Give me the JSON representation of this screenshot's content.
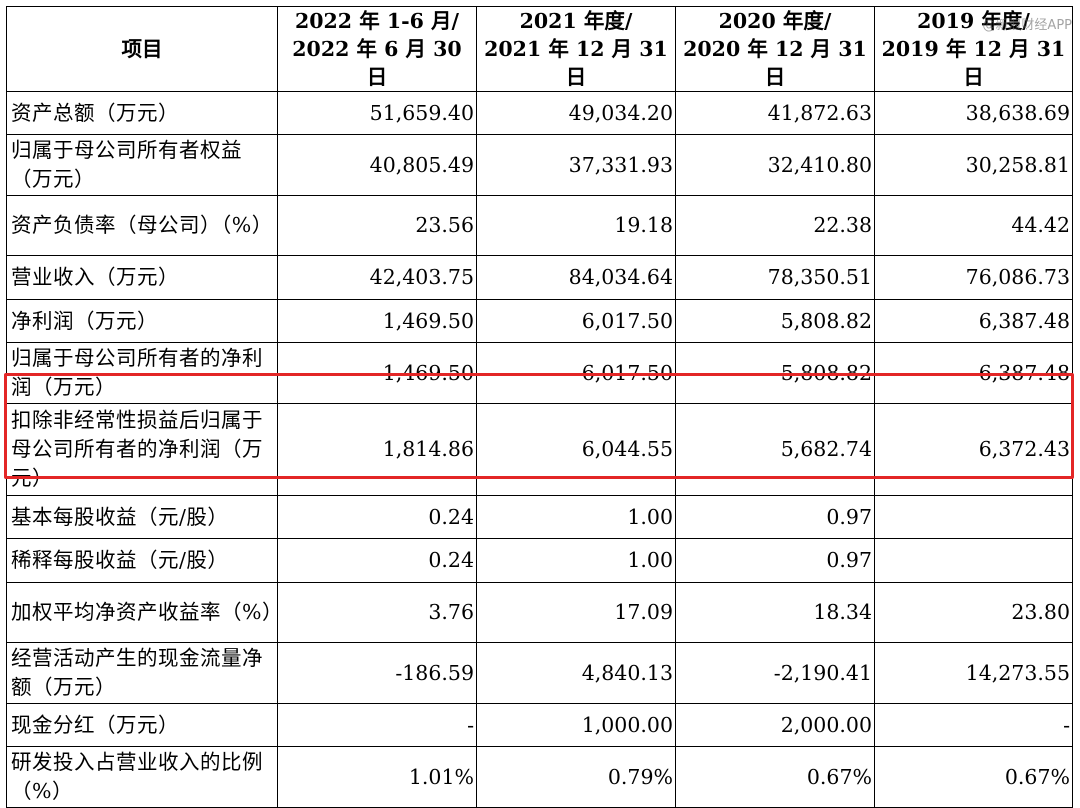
{
  "header": {
    "item": "项目",
    "periods": [
      {
        "line1": "2022 年 1-6 月/",
        "line2": "2022 年 6 月 30 日"
      },
      {
        "line1": "2021 年度/",
        "line2": "2021 年 12 月 31 日"
      },
      {
        "line1": "2020 年度/",
        "line2": "2020 年 12 月 31 日"
      },
      {
        "line1": "2019 年度/",
        "line2": "2019 年 12 月 31 日"
      }
    ]
  },
  "watermark": "@新浪财经APP",
  "highlight_color": "#e32626",
  "rows": [
    {
      "label": "资产总额（万元）",
      "values": [
        "51,659.40",
        "49,034.20",
        "41,872.63",
        "38,638.69"
      ]
    },
    {
      "label": "归属于母公司所有者权益（万元）",
      "values": [
        "40,805.49",
        "37,331.93",
        "32,410.80",
        "30,258.81"
      ]
    },
    {
      "label": "资产负债率（母公司）（%）",
      "values": [
        "23.56",
        "19.18",
        "22.38",
        "44.42"
      ]
    },
    {
      "label": "营业收入（万元）",
      "values": [
        "42,403.75",
        "84,034.64",
        "78,350.51",
        "76,086.73"
      ]
    },
    {
      "label": "净利润（万元）",
      "values": [
        "1,469.50",
        "6,017.50",
        "5,808.82",
        "6,387.48"
      ]
    },
    {
      "label": "归属于母公司所有者的净利润（万元）",
      "values": [
        "1,469.50",
        "6,017.50",
        "5,808.82",
        "6,387.48"
      ]
    },
    {
      "label": "扣除非经常性损益后归属于母公司所有者的净利润（万元）",
      "values": [
        "1,814.86",
        "6,044.55",
        "5,682.74",
        "6,372.43"
      ]
    },
    {
      "label": "基本每股收益（元/股）",
      "values": [
        "0.24",
        "1.00",
        "0.97",
        ""
      ]
    },
    {
      "label": "稀释每股收益（元/股）",
      "values": [
        "0.24",
        "1.00",
        "0.97",
        ""
      ]
    },
    {
      "label": "加权平均净资产收益率（%）",
      "values": [
        "3.76",
        "17.09",
        "18.34",
        "23.80"
      ]
    },
    {
      "label": "经营活动产生的现金流量净额（万元）",
      "values": [
        "-186.59",
        "4,840.13",
        "-2,190.41",
        "14,273.55"
      ]
    },
    {
      "label": "现金分红（万元）",
      "values": [
        "-",
        "1,000.00",
        "2,000.00",
        "-"
      ]
    },
    {
      "label": "研发投入占营业收入的比例（%）",
      "values": [
        "1.01%",
        "0.79%",
        "0.67%",
        "0.67%"
      ]
    }
  ]
}
